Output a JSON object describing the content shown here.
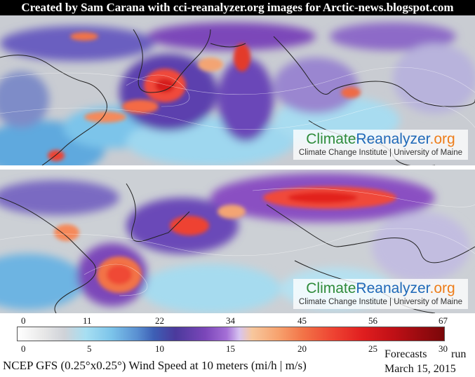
{
  "header": {
    "credit": "Created by Sam Carana with cci-reanalyzer.org images for Arctic-news.blogspot.com"
  },
  "watermark": {
    "logo_part1": "Climate",
    "logo_part2": "Reanalyzer",
    "logo_part3": ".org",
    "subtitle": "Climate Change Institute | University of Maine"
  },
  "legend": {
    "mph_ticks": [
      "0",
      "11",
      "22",
      "34",
      "45",
      "56",
      "67"
    ],
    "ms_ticks": [
      "0",
      "5",
      "10",
      "15",
      "20",
      "25",
      "30"
    ],
    "colors": [
      "#ffffff",
      "#cfd2d8",
      "#7cc4ea",
      "#3d5fb5",
      "#7b46b9",
      "#d7c4f0",
      "#f7a36f",
      "#ee4332",
      "#c01016",
      "#7a0709"
    ]
  },
  "footer": {
    "description": "NCEP GFS (0.25°x0.25°) Wind Speed at 10 meters (mi/h | m/s)",
    "forecasts_label": "Forecasts",
    "run_label": "run",
    "date": "March 15, 2015"
  }
}
